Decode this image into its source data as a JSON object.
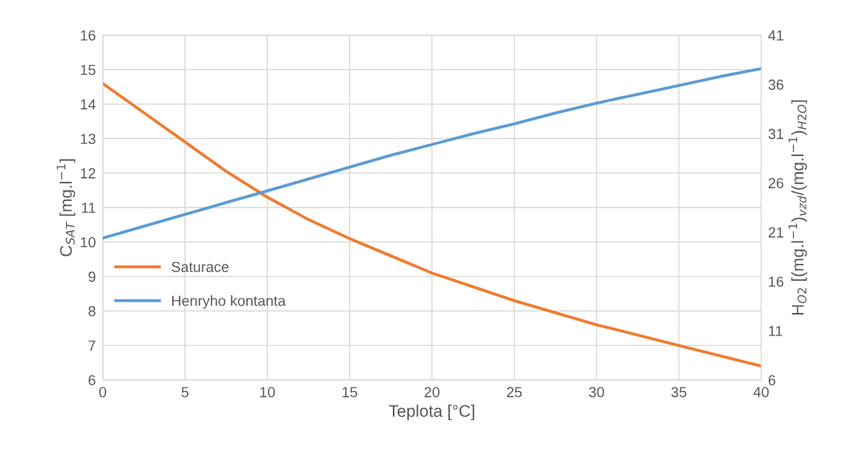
{
  "chart_data": {
    "type": "line",
    "xlabel": "Teplota [°C]",
    "ylabel": "C$_{SAT}$ [mg.l$^{−1}$]",
    "y2label": "H$_{O2}$ [(mg.l$^{−1}$)$_{vzd}$/(mg.l$^{−1}$)$_{H2O}$]",
    "x": [
      0,
      2.5,
      5,
      7.5,
      10,
      12.5,
      15,
      17.5,
      20,
      22.5,
      25,
      27.5,
      30,
      32.5,
      35,
      37.5,
      40
    ],
    "series": [
      {
        "name": "Saturace",
        "color": "#ed7d31",
        "values": [
          14.6,
          13.75,
          12.9,
          12.05,
          11.3,
          10.65,
          10.1,
          9.6,
          9.1,
          8.7,
          8.3,
          7.95,
          7.6,
          7.3,
          7.0,
          6.7,
          6.4
        ]
      },
      {
        "name": "Henryho kontanta",
        "color": "#5b9bd5",
        "axis": "y2",
        "values": [
          20.4,
          21.6,
          22.8,
          24.0,
          25.2,
          26.4,
          27.6,
          28.8,
          29.9,
          31.0,
          32.0,
          33.1,
          34.1,
          35.0,
          35.9,
          36.8,
          37.6
        ]
      }
    ],
    "xlim": [
      0,
      40
    ],
    "xticks": [
      0,
      5,
      10,
      15,
      20,
      25,
      30,
      35,
      40
    ],
    "ylim": [
      6,
      16
    ],
    "yticks": [
      6,
      7,
      8,
      9,
      10,
      11,
      12,
      13,
      14,
      15,
      16
    ],
    "y2lim": [
      6,
      41
    ],
    "y2ticks": [
      6,
      11,
      16,
      21,
      26,
      31,
      36,
      41
    ],
    "grid": true,
    "legend": "left",
    "marker": "none",
    "line_style": "solid"
  }
}
